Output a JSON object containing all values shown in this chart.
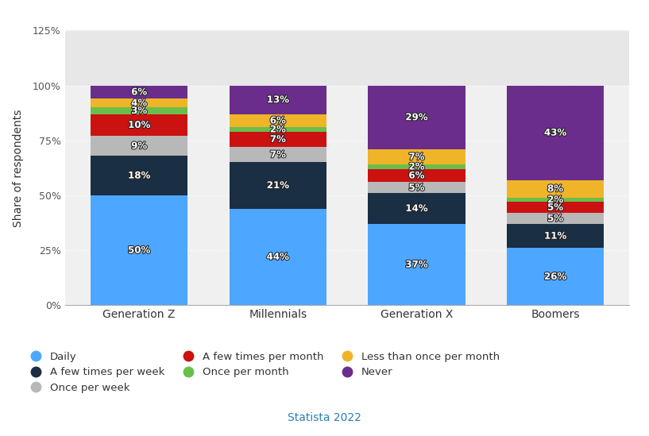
{
  "categories": [
    "Generation Z",
    "Millennials",
    "Generation X",
    "Boomers"
  ],
  "series": [
    {
      "label": "Daily",
      "color": "#4da6ff",
      "values": [
        50,
        44,
        37,
        26
      ]
    },
    {
      "label": "A few times per week",
      "color": "#1a2e44",
      "values": [
        18,
        21,
        14,
        11
      ]
    },
    {
      "label": "Once per week",
      "color": "#b8b8b8",
      "values": [
        9,
        7,
        5,
        5
      ]
    },
    {
      "label": "A few times per month",
      "color": "#cc1111",
      "values": [
        10,
        7,
        6,
        5
      ]
    },
    {
      "label": "Once per month",
      "color": "#6abf4b",
      "values": [
        3,
        2,
        2,
        2
      ]
    },
    {
      "label": "Less than once per month",
      "color": "#f0b429",
      "values": [
        4,
        6,
        7,
        8
      ]
    },
    {
      "label": "Never",
      "color": "#6b2d8b",
      "values": [
        6,
        13,
        29,
        43
      ]
    }
  ],
  "legend_order": [
    0,
    1,
    2,
    3,
    4,
    5,
    6
  ],
  "legend_ncol": 3,
  "ylabel": "Share of respondents",
  "ylim": [
    0,
    125
  ],
  "yticks": [
    0,
    25,
    50,
    75,
    100,
    125
  ],
  "ytick_labels": [
    "0%",
    "25%",
    "50%",
    "75%",
    "100%",
    "125%"
  ],
  "bar_width": 0.7,
  "background_color": "#ffffff",
  "plot_bg_color": "#f0f0f0",
  "plot_bg_color_upper": "#e8e8e8",
  "grid_color": "#ffffff",
  "source_text": "Statista 2022",
  "source_color": "#2980b9",
  "text_color_white": "#ffffff",
  "text_fontsize": 8.5,
  "label_outline_color": "#333333"
}
